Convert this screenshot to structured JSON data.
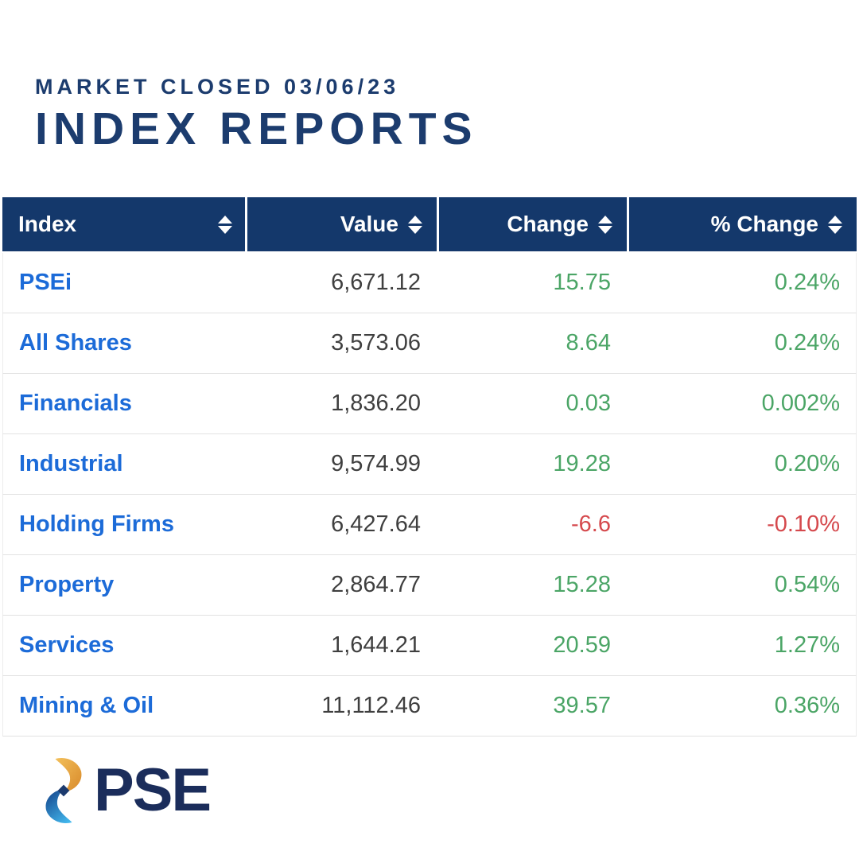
{
  "header": {
    "subtitle": "MARKET CLOSED 03/06/23",
    "title": "INDEX REPORTS"
  },
  "table": {
    "columns": [
      {
        "label": "Index",
        "align": "left"
      },
      {
        "label": "Value",
        "align": "right"
      },
      {
        "label": "Change",
        "align": "right"
      },
      {
        "label": "% Change",
        "align": "right"
      }
    ],
    "rows": [
      {
        "index": "PSEi",
        "value": "6,671.12",
        "change": "15.75",
        "pct_change": "0.24%",
        "direction": "up"
      },
      {
        "index": "All Shares",
        "value": "3,573.06",
        "change": "8.64",
        "pct_change": "0.24%",
        "direction": "up"
      },
      {
        "index": "Financials",
        "value": "1,836.20",
        "change": "0.03",
        "pct_change": "0.002%",
        "direction": "up"
      },
      {
        "index": "Industrial",
        "value": "9,574.99",
        "change": "19.28",
        "pct_change": "0.20%",
        "direction": "up"
      },
      {
        "index": "Holding Firms",
        "value": "6,427.64",
        "change": "-6.6",
        "pct_change": "-0.10%",
        "direction": "down"
      },
      {
        "index": "Property",
        "value": "2,864.77",
        "change": "15.28",
        "pct_change": "0.54%",
        "direction": "up"
      },
      {
        "index": "Services",
        "value": "1,644.21",
        "change": "20.59",
        "pct_change": "1.27%",
        "direction": "up"
      },
      {
        "index": "Mining & Oil",
        "value": "11,112.46",
        "change": "39.57",
        "pct_change": "0.36%",
        "direction": "up"
      }
    ]
  },
  "logo": {
    "text": "PSE"
  },
  "icons": {
    "sort": "up-down-triangles",
    "logo_mark": "pse-swirl-ribbon"
  },
  "colors": {
    "brand_navy": "#14386b",
    "heading_navy": "#1c3c6e",
    "link_blue": "#1c6bd8",
    "positive_green": "#4ba566",
    "negative_red": "#d5494d",
    "value_gray": "#3f3f3f",
    "row_border": "#e2e2e2",
    "logo_gold": "#e09a33",
    "logo_blue": "#2f9ade"
  }
}
